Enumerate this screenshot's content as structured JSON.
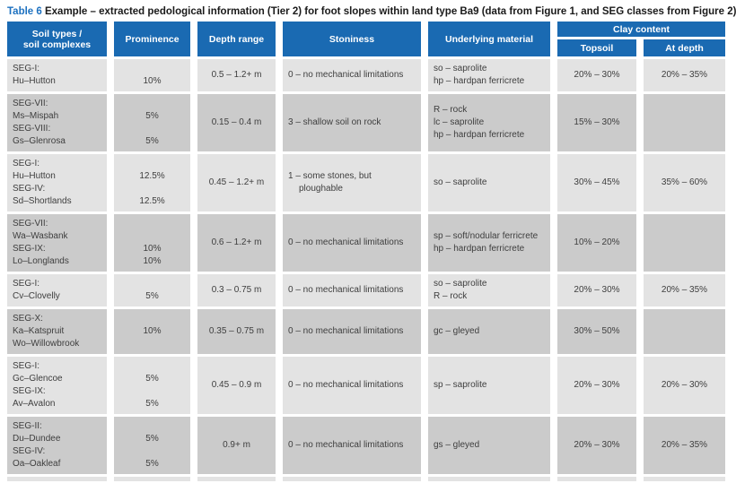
{
  "title": {
    "label": "Table 6",
    "text": "Example – extracted pedological information (Tier 2) for foot slopes within land type Ba9 (data from Figure 1, and SEG classes from Figure 2)"
  },
  "columns": {
    "soil_line1": "Soil types /",
    "soil_line2": "soil complexes",
    "prominence": "Prominence",
    "depth": "Depth range",
    "stoniness": "Stoniness",
    "underlying": "Underlying material",
    "clay": "Clay content",
    "topsoil": "Topsoil",
    "at_depth": "At depth"
  },
  "rows": [
    {
      "soil_lines": [
        "SEG-I:",
        "Hu–Hutton"
      ],
      "prominence_lines": [
        "",
        "10%"
      ],
      "depth": "0.5 – 1.2+ m",
      "stoniness_lines": [
        "0 – no mechanical limitations"
      ],
      "underlying_lines": [
        "so – saprolite",
        "hp – hardpan ferricrete"
      ],
      "topsoil": "20% – 30%",
      "at_depth": "20% – 35%"
    },
    {
      "soil_lines": [
        "SEG-VII:",
        "Ms–Mispah",
        "SEG-VIII:",
        "Gs–Glenrosa"
      ],
      "prominence_lines": [
        "",
        "5%",
        "",
        "5%"
      ],
      "depth": "0.15 – 0.4 m",
      "stoniness_lines": [
        "3 – shallow soil on rock"
      ],
      "underlying_lines": [
        "R – rock",
        "lc – saprolite",
        "hp – hardpan ferricrete"
      ],
      "topsoil": "15% – 30%",
      "at_depth": ""
    },
    {
      "soil_lines": [
        "SEG-I:",
        "Hu–Hutton",
        "SEG-IV:",
        "Sd–Shortlands"
      ],
      "prominence_lines": [
        "",
        "12.5%",
        "",
        "12.5%"
      ],
      "depth": "0.45 – 1.2+ m",
      "stoniness_lines": [
        "1 – some stones, but",
        "ploughable"
      ],
      "underlying_lines": [
        "so – saprolite"
      ],
      "topsoil": "30% – 45%",
      "at_depth": "35% – 60%"
    },
    {
      "soil_lines": [
        "SEG-VII:",
        "Wa–Wasbank",
        "SEG-IX:",
        "Lo–Longlands"
      ],
      "prominence_lines": [
        "",
        "",
        "10%",
        "10%"
      ],
      "depth": "0.6 – 1.2+ m",
      "stoniness_lines": [
        "0 – no mechanical limitations"
      ],
      "underlying_lines": [
        "sp – soft/nodular ferricrete",
        "hp – hardpan ferricrete"
      ],
      "topsoil": "10% – 20%",
      "at_depth": ""
    },
    {
      "soil_lines": [
        "SEG-I:",
        "Cv–Clovelly"
      ],
      "prominence_lines": [
        "",
        "5%"
      ],
      "depth": "0.3 – 0.75 m",
      "stoniness_lines": [
        "0 – no mechanical limitations"
      ],
      "underlying_lines": [
        "so – saprolite",
        "R – rock"
      ],
      "topsoil": "20% – 30%",
      "at_depth": "20% – 35%"
    },
    {
      "soil_lines": [
        "SEG-X:",
        "Ka–Katspruit",
        "Wo–Willowbrook"
      ],
      "prominence_lines": [
        "",
        "10%",
        ""
      ],
      "depth": "0.35 – 0.75 m",
      "stoniness_lines": [
        "0 – no mechanical limitations"
      ],
      "underlying_lines": [
        "gc – gleyed"
      ],
      "topsoil": "30% – 50%",
      "at_depth": ""
    },
    {
      "soil_lines": [
        "SEG-I:",
        "Gc–Glencoe",
        "SEG-IX:",
        "Av–Avalon"
      ],
      "prominence_lines": [
        "",
        "5%",
        "",
        "5%"
      ],
      "depth": "0.45 – 0.9 m",
      "stoniness_lines": [
        "0 – no mechanical limitations"
      ],
      "underlying_lines": [
        "sp – saprolite"
      ],
      "topsoil": "20% – 30%",
      "at_depth": "20% – 30%"
    },
    {
      "soil_lines": [
        "SEG-II:",
        "Du–Dundee",
        "SEG-IV:",
        "Oa–Oakleaf"
      ],
      "prominence_lines": [
        "",
        "5%",
        "",
        "5%"
      ],
      "depth": "0.9+ m",
      "stoniness_lines": [
        "0 – no mechanical limitations"
      ],
      "underlying_lines": [
        "gs – gleyed"
      ],
      "topsoil": "20% – 30%",
      "at_depth": "20% – 35%"
    }
  ],
  "colors": {
    "header_bg": "#1a6ab2",
    "row_light": "#e3e3e3",
    "row_dark": "#cbcbcb",
    "title_accent": "#1d71c0",
    "body_text": "#3e3e3e"
  }
}
